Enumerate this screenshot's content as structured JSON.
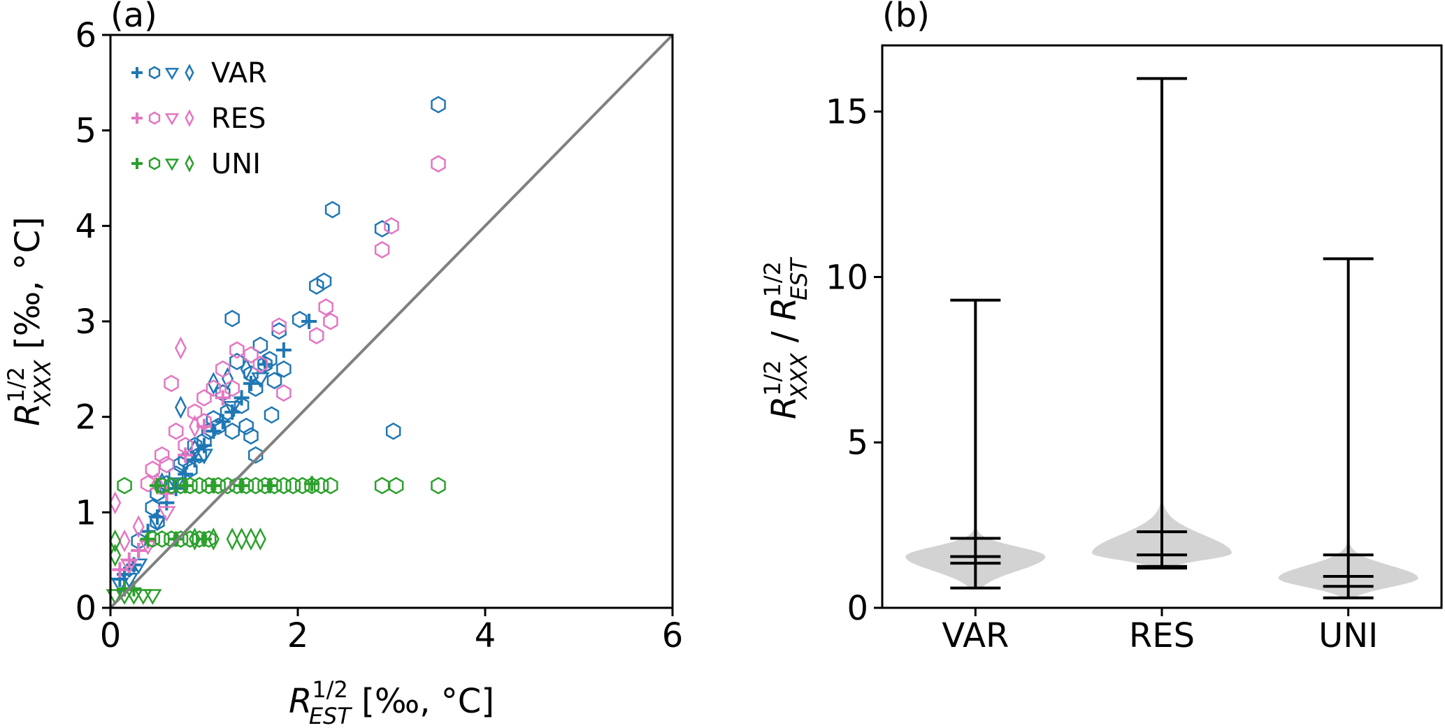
{
  "colors": {
    "var": "#1f77b4",
    "res": "#e377c2",
    "uni": "#2ca02c",
    "diagonal": "#808080",
    "violin": "#d3d3d3",
    "axis": "#000000"
  },
  "chart_data": [
    {
      "type": "scatter",
      "panel_label": "(a)",
      "xlabel_base": "R",
      "xlabel_sup": "1/2",
      "xlabel_sub": "EST",
      "xlabel_units": " [‰, °C]",
      "ylabel_base": "R",
      "ylabel_sup": "1/2",
      "ylabel_sub": "XXX",
      "ylabel_units": " [‰, °C]",
      "xlim": [
        0,
        6
      ],
      "ylim": [
        0,
        6
      ],
      "xticks": [
        0,
        2,
        4,
        6
      ],
      "xtick_labels": [
        "0",
        "2",
        "4",
        "6"
      ],
      "yticks": [
        0,
        1,
        2,
        3,
        4,
        5,
        6
      ],
      "ytick_labels": [
        "0",
        "1",
        "2",
        "3",
        "4",
        "5",
        "6"
      ],
      "diagonal": [
        [
          0,
          0
        ],
        [
          6,
          6
        ]
      ],
      "legend_position": "top-left",
      "marker_types": [
        "plus",
        "hexagon",
        "triangle-down",
        "diamond"
      ],
      "series": [
        {
          "name": "VAR",
          "color": "#1f77b4",
          "hexagon": [
            [
              3.5,
              5.27
            ],
            [
              2.37,
              4.17
            ],
            [
              2.9,
              3.97
            ],
            [
              2.28,
              3.42
            ],
            [
              2.2,
              3.37
            ],
            [
              1.3,
              3.03
            ],
            [
              2.02,
              3.02
            ],
            [
              1.8,
              2.9
            ],
            [
              1.6,
              2.75
            ],
            [
              1.7,
              2.6
            ],
            [
              1.35,
              2.58
            ],
            [
              1.5,
              2.45
            ],
            [
              1.75,
              2.38
            ],
            [
              1.55,
              2.3
            ],
            [
              1.2,
              2.25
            ],
            [
              1.4,
              2.12
            ],
            [
              1.25,
              2.05
            ],
            [
              1.72,
              2.02
            ],
            [
              1.1,
              1.98
            ],
            [
              1.45,
              1.9
            ],
            [
              1.3,
              1.85
            ],
            [
              1.5,
              1.8
            ],
            [
              1.0,
              1.75
            ],
            [
              1.55,
              1.6
            ],
            [
              0.9,
              1.7
            ],
            [
              0.95,
              1.6
            ],
            [
              0.8,
              1.55
            ],
            [
              0.7,
              1.4
            ],
            [
              0.6,
              1.3
            ],
            [
              0.5,
              1.2
            ],
            [
              0.45,
              1.05
            ],
            [
              0.5,
              0.9
            ],
            [
              0.3,
              0.7
            ],
            [
              3.02,
              1.85
            ],
            [
              1.85,
              2.5
            ],
            [
              1.65,
              2.55
            ],
            [
              1.05,
              1.85
            ],
            [
              1.15,
              1.9
            ],
            [
              0.85,
              1.45
            ],
            [
              0.75,
              1.5
            ]
          ],
          "plus": [
            [
              2.12,
              3.0
            ],
            [
              1.85,
              2.7
            ],
            [
              1.65,
              2.55
            ],
            [
              1.5,
              2.35
            ],
            [
              1.4,
              2.2
            ],
            [
              1.3,
              2.05
            ],
            [
              1.2,
              1.95
            ],
            [
              1.1,
              1.85
            ],
            [
              1.0,
              1.7
            ],
            [
              0.9,
              1.55
            ],
            [
              0.8,
              1.4
            ],
            [
              0.7,
              1.25
            ],
            [
              0.6,
              1.1
            ],
            [
              0.5,
              0.95
            ],
            [
              0.4,
              0.8
            ],
            [
              0.3,
              0.6
            ],
            [
              0.2,
              0.4
            ],
            [
              0.1,
              0.3
            ],
            [
              0.15,
              0.35
            ],
            [
              0.25,
              0.45
            ]
          ],
          "triangle_down": [
            [
              0.1,
              0.25
            ],
            [
              0.2,
              0.3
            ],
            [
              0.3,
              0.45
            ],
            [
              0.5,
              0.9
            ],
            [
              0.7,
              1.3
            ],
            [
              1.0,
              1.6
            ],
            [
              1.3,
              2.1
            ],
            [
              1.6,
              2.4
            ]
          ],
          "diamond": [
            [
              0.75,
              2.1
            ],
            [
              1.1,
              2.35
            ],
            [
              1.25,
              2.4
            ],
            [
              0.55,
              1.3
            ],
            [
              0.9,
              1.65
            ],
            [
              1.45,
              2.5
            ]
          ]
        },
        {
          "name": "RES",
          "color": "#e377c2",
          "hexagon": [
            [
              3.5,
              4.65
            ],
            [
              3.0,
              4.0
            ],
            [
              2.9,
              3.75
            ],
            [
              2.3,
              3.15
            ],
            [
              2.35,
              3.0
            ],
            [
              2.2,
              2.85
            ],
            [
              1.8,
              2.95
            ],
            [
              1.35,
              2.7
            ],
            [
              1.5,
              2.65
            ],
            [
              1.2,
              2.5
            ],
            [
              1.85,
              2.25
            ],
            [
              1.1,
              2.3
            ],
            [
              0.65,
              2.35
            ],
            [
              1.0,
              2.2
            ],
            [
              0.9,
              2.05
            ],
            [
              0.7,
              1.85
            ],
            [
              0.55,
              1.6
            ],
            [
              0.45,
              1.45
            ],
            [
              0.4,
              1.3
            ],
            [
              1.0,
              1.95
            ],
            [
              1.6,
              2.55
            ],
            [
              1.3,
              2.3
            ],
            [
              0.8,
              1.7
            ],
            [
              0.6,
              1.5
            ]
          ],
          "plus": [
            [
              0.1,
              0.4
            ],
            [
              0.2,
              0.5
            ],
            [
              0.3,
              0.6
            ],
            [
              0.4,
              0.7
            ],
            [
              0.6,
              1.2
            ],
            [
              0.8,
              1.6
            ],
            [
              1.0,
              1.9
            ],
            [
              1.2,
              2.2
            ]
          ],
          "triangle_down": [
            [
              0.2,
              0.45
            ],
            [
              0.4,
              0.65
            ],
            [
              0.6,
              1.0
            ]
          ],
          "diamond": [
            [
              0.75,
              2.72
            ],
            [
              0.05,
              1.1
            ],
            [
              0.5,
              1.3
            ],
            [
              0.3,
              0.85
            ],
            [
              0.15,
              0.7
            ],
            [
              0.9,
              1.9
            ]
          ]
        },
        {
          "name": "UNI",
          "color": "#2ca02c",
          "hexagon": [
            [
              0.15,
              1.28
            ],
            [
              0.55,
              1.28
            ],
            [
              0.65,
              1.28
            ],
            [
              0.75,
              1.28
            ],
            [
              0.85,
              1.28
            ],
            [
              0.95,
              1.28
            ],
            [
              1.05,
              1.28
            ],
            [
              1.15,
              1.28
            ],
            [
              1.25,
              1.28
            ],
            [
              1.35,
              1.28
            ],
            [
              1.45,
              1.28
            ],
            [
              1.55,
              1.28
            ],
            [
              1.65,
              1.28
            ],
            [
              1.75,
              1.28
            ],
            [
              1.85,
              1.28
            ],
            [
              1.95,
              1.28
            ],
            [
              2.05,
              1.28
            ],
            [
              2.15,
              1.28
            ],
            [
              2.25,
              1.28
            ],
            [
              2.35,
              1.28
            ],
            [
              2.9,
              1.28
            ],
            [
              3.05,
              1.28
            ],
            [
              3.5,
              1.28
            ],
            [
              0.45,
              0.72
            ],
            [
              0.55,
              0.72
            ],
            [
              0.65,
              0.72
            ],
            [
              0.75,
              0.72
            ],
            [
              0.85,
              0.72
            ],
            [
              0.95,
              0.72
            ],
            [
              1.05,
              0.72
            ]
          ],
          "plus": [
            [
              0.5,
              1.28
            ],
            [
              0.8,
              1.28
            ],
            [
              1.1,
              1.28
            ],
            [
              1.4,
              1.28
            ],
            [
              1.7,
              1.28
            ],
            [
              2.15,
              1.3
            ],
            [
              0.4,
              0.72
            ],
            [
              0.7,
              0.72
            ],
            [
              1.0,
              0.72
            ],
            [
              0.15,
              0.2
            ],
            [
              0.25,
              0.2
            ]
          ],
          "triangle_down": [
            [
              0.05,
              0.13
            ],
            [
              0.15,
              0.13
            ],
            [
              0.25,
              0.13
            ],
            [
              0.35,
              0.13
            ],
            [
              0.45,
              0.13
            ]
          ],
          "diamond": [
            [
              0.05,
              0.7
            ],
            [
              0.05,
              0.55
            ],
            [
              1.3,
              0.72
            ],
            [
              1.4,
              0.72
            ],
            [
              1.5,
              0.72
            ],
            [
              1.6,
              0.72
            ],
            [
              0.9,
              0.72
            ],
            [
              1.1,
              0.72
            ]
          ]
        }
      ]
    },
    {
      "type": "violin",
      "panel_label": "(b)",
      "ylabel_num_base": "R",
      "ylabel_num_sup": "1/2",
      "ylabel_num_sub": "XXX",
      "ylabel_sep": " / ",
      "ylabel_den_base": "R",
      "ylabel_den_sup": "1/2",
      "ylabel_den_sub": "EST",
      "categories": [
        "VAR",
        "RES",
        "UNI"
      ],
      "ylim": [
        0,
        17
      ],
      "yticks": [
        0,
        5,
        10,
        15
      ],
      "ytick_labels": [
        "0",
        "5",
        "10",
        "15"
      ],
      "series": [
        {
          "name": "VAR",
          "min": 0.6,
          "max": 9.3,
          "lines": [
            1.35,
            1.55,
            2.1
          ],
          "mode": 1.55,
          "violin_lo": 0.6,
          "violin_hi": 2.5
        },
        {
          "name": "RES",
          "min": 1.2,
          "max": 16.0,
          "lines": [
            1.25,
            1.6,
            2.3
          ],
          "mode": 1.65,
          "violin_lo": 1.2,
          "violin_hi": 3.4
        },
        {
          "name": "UNI",
          "min": 0.3,
          "max": 10.55,
          "lines": [
            0.65,
            0.95,
            1.6
          ],
          "mode": 0.9,
          "violin_lo": 0.3,
          "violin_hi": 2.1
        }
      ]
    }
  ]
}
